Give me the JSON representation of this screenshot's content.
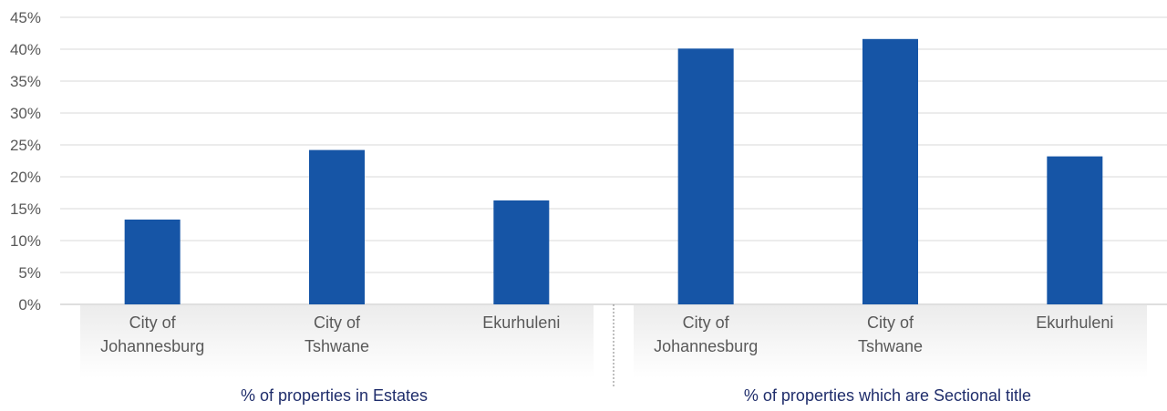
{
  "chart_data": {
    "type": "bar",
    "title": "",
    "xlabel": "",
    "ylabel": "",
    "ylim": [
      0,
      45
    ],
    "y_ticks": [
      "0%",
      "5%",
      "10%",
      "15%",
      "20%",
      "25%",
      "30%",
      "35%",
      "40%",
      "45%"
    ],
    "grid": true,
    "bar_color": "#1655a6",
    "groups": [
      {
        "label": "% of properties in Estates",
        "categories": [
          [
            "City of",
            "Johannesburg"
          ],
          [
            "City of",
            "Tshwane"
          ],
          [
            "Ekurhuleni"
          ]
        ],
        "values": [
          13.3,
          24.2,
          16.3
        ]
      },
      {
        "label": "% of properties which are Sectional title",
        "categories": [
          [
            "City of",
            "Johannesburg"
          ],
          [
            "City of",
            "Tshwane"
          ],
          [
            "Ekurhuleni"
          ]
        ],
        "values": [
          40.1,
          41.6,
          23.2
        ]
      }
    ]
  }
}
